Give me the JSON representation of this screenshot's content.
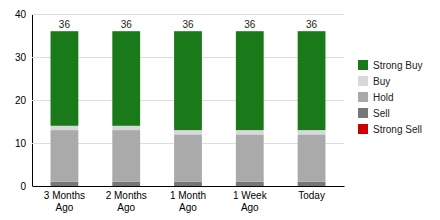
{
  "chart_data": {
    "type": "bar",
    "stacked": true,
    "grid": true,
    "categories": [
      "3 Months\nAgo",
      "2 Months\nAgo",
      "1 Month\nAgo",
      "1 Week\nAgo",
      "Today"
    ],
    "series": [
      {
        "name": "Strong Sell",
        "color": "#cc0000",
        "values": [
          0,
          0,
          0,
          0,
          0
        ]
      },
      {
        "name": "Sell",
        "color": "#777777",
        "values": [
          1,
          1,
          1,
          1,
          1
        ]
      },
      {
        "name": "Hold",
        "color": "#aaaaaa",
        "values": [
          12,
          12,
          11,
          11,
          11
        ]
      },
      {
        "name": "Buy",
        "color": "#d8d8d8",
        "values": [
          1,
          1,
          1,
          1,
          1
        ]
      },
      {
        "name": "Strong Buy",
        "color": "#1a7a1a",
        "values": [
          22,
          22,
          23,
          23,
          23
        ]
      }
    ],
    "totals": [
      36,
      36,
      36,
      36,
      36
    ],
    "ylim": [
      0,
      40
    ],
    "yticks": [
      0,
      10,
      20,
      30,
      40
    ]
  }
}
